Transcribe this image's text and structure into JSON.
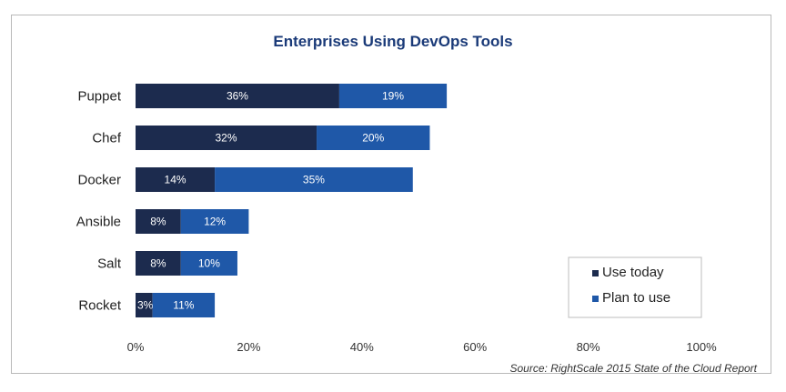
{
  "chart_data": {
    "type": "bar",
    "orientation": "horizontal",
    "stacked": true,
    "title": "Enterprises Using DevOps Tools",
    "categories": [
      "Puppet",
      "Chef",
      "Docker",
      "Ansible",
      "Salt",
      "Rocket"
    ],
    "series": [
      {
        "name": "Use today",
        "color": "#1c2b4e",
        "values": [
          36,
          32,
          14,
          8,
          8,
          3
        ],
        "labels": [
          "36%",
          "32%",
          "14%",
          "8%",
          "8%",
          "3%"
        ]
      },
      {
        "name": "Plan to use",
        "color": "#1f58a8",
        "values": [
          19,
          20,
          35,
          12,
          10,
          11
        ],
        "labels": [
          "19%",
          "20%",
          "35%",
          "12%",
          "10%",
          "11%"
        ]
      }
    ],
    "xlim": [
      0,
      100
    ],
    "xticks": [
      "0%",
      "20%",
      "40%",
      "60%",
      "80%",
      "100%"
    ],
    "xlabel": "",
    "ylabel": "",
    "grid": false,
    "legend_position": "bottom-right",
    "source": "Source: RightScale 2015 State of the Cloud Report"
  }
}
